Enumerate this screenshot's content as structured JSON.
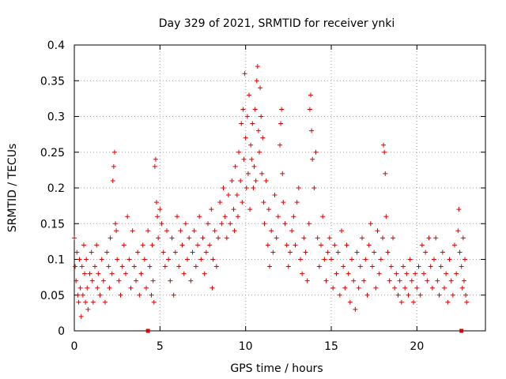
{
  "chart_data": {
    "type": "scatter",
    "title": "Day 329 of 2021, SRMTID for receiver ynki",
    "xlabel": "GPS time / hours",
    "ylabel": "SRMTID / TECUs",
    "xlim": [
      0,
      24
    ],
    "ylim": [
      0,
      0.4
    ],
    "x_ticks": [
      0,
      5,
      10,
      15,
      20
    ],
    "y_ticks": [
      0,
      0.05,
      0.1,
      0.15,
      0.2,
      0.25,
      0.3,
      0.35,
      0.4
    ],
    "x_tick_labels": [
      "0",
      "5",
      "10",
      "15",
      "20"
    ],
    "y_tick_labels": [
      "0",
      "0.05",
      "0.1",
      "0.15",
      "0.2",
      "0.25",
      "0.3",
      "0.35",
      "0.4"
    ],
    "grid": true,
    "marker": "+",
    "color": "#e00000",
    "axis_markers": [
      {
        "x": 4.3,
        "y": 0
      },
      {
        "x": 22.6,
        "y": 0
      }
    ],
    "series": [
      {
        "name": "ynki",
        "points": [
          [
            0.0,
            0.13
          ],
          [
            0.05,
            0.09
          ],
          [
            0.1,
            0.07
          ],
          [
            0.15,
            0.11
          ],
          [
            0.2,
            0.05
          ],
          [
            0.25,
            0.04
          ],
          [
            0.3,
            0.1
          ],
          [
            0.35,
            0.06
          ],
          [
            0.4,
            0.02
          ],
          [
            0.45,
            0.09
          ],
          [
            0.5,
            0.05
          ],
          [
            0.55,
            0.12
          ],
          [
            0.6,
            0.08
          ],
          [
            0.65,
            0.04
          ],
          [
            0.7,
            0.1
          ],
          [
            0.75,
            0.06
          ],
          [
            0.8,
            0.03
          ],
          [
            0.9,
            0.08
          ],
          [
            1.0,
            0.11
          ],
          [
            1.05,
            0.07
          ],
          [
            1.1,
            0.04
          ],
          [
            1.2,
            0.09
          ],
          [
            1.3,
            0.12
          ],
          [
            1.35,
            0.06
          ],
          [
            1.4,
            0.08
          ],
          [
            1.5,
            0.05
          ],
          [
            1.6,
            0.1
          ],
          [
            1.7,
            0.07
          ],
          [
            1.8,
            0.04
          ],
          [
            1.9,
            0.11
          ],
          [
            2.0,
            0.09
          ],
          [
            2.05,
            0.06
          ],
          [
            2.1,
            0.13
          ],
          [
            2.2,
            0.08
          ],
          [
            2.25,
            0.21
          ],
          [
            2.3,
            0.23
          ],
          [
            2.35,
            0.25
          ],
          [
            2.4,
            0.15
          ],
          [
            2.45,
            0.14
          ],
          [
            2.5,
            0.1
          ],
          [
            2.6,
            0.07
          ],
          [
            2.7,
            0.05
          ],
          [
            2.8,
            0.09
          ],
          [
            2.9,
            0.12
          ],
          [
            3.0,
            0.08
          ],
          [
            3.1,
            0.16
          ],
          [
            3.2,
            0.1
          ],
          [
            3.3,
            0.06
          ],
          [
            3.4,
            0.14
          ],
          [
            3.5,
            0.09
          ],
          [
            3.6,
            0.07
          ],
          [
            3.7,
            0.11
          ],
          [
            3.8,
            0.05
          ],
          [
            3.9,
            0.08
          ],
          [
            4.0,
            0.12
          ],
          [
            4.1,
            0.1
          ],
          [
            4.2,
            0.06
          ],
          [
            4.3,
            0.14
          ],
          [
            4.4,
            0.09
          ],
          [
            4.5,
            0.05
          ],
          [
            4.55,
            0.12
          ],
          [
            4.6,
            0.07
          ],
          [
            4.65,
            0.04
          ],
          [
            4.7,
            0.23
          ],
          [
            4.75,
            0.24
          ],
          [
            4.8,
            0.18
          ],
          [
            4.85,
            0.16
          ],
          [
            4.9,
            0.13
          ],
          [
            5.0,
            0.17
          ],
          [
            5.1,
            0.15
          ],
          [
            5.2,
            0.11
          ],
          [
            5.3,
            0.09
          ],
          [
            5.4,
            0.14
          ],
          [
            5.5,
            0.1
          ],
          [
            5.6,
            0.07
          ],
          [
            5.7,
            0.13
          ],
          [
            5.8,
            0.05
          ],
          [
            5.9,
            0.11
          ],
          [
            6.0,
            0.16
          ],
          [
            6.1,
            0.09
          ],
          [
            6.2,
            0.14
          ],
          [
            6.3,
            0.12
          ],
          [
            6.4,
            0.08
          ],
          [
            6.5,
            0.15
          ],
          [
            6.6,
            0.1
          ],
          [
            6.7,
            0.13
          ],
          [
            6.8,
            0.07
          ],
          [
            6.9,
            0.11
          ],
          [
            7.0,
            0.14
          ],
          [
            7.1,
            0.09
          ],
          [
            7.2,
            0.12
          ],
          [
            7.3,
            0.16
          ],
          [
            7.4,
            0.1
          ],
          [
            7.5,
            0.13
          ],
          [
            7.6,
            0.08
          ],
          [
            7.7,
            0.11
          ],
          [
            7.8,
            0.15
          ],
          [
            7.9,
            0.12
          ],
          [
            8.0,
            0.17
          ],
          [
            8.05,
            0.06
          ],
          [
            8.1,
            0.1
          ],
          [
            8.2,
            0.14
          ],
          [
            8.3,
            0.09
          ],
          [
            8.4,
            0.13
          ],
          [
            8.5,
            0.18
          ],
          [
            8.6,
            0.15
          ],
          [
            8.7,
            0.2
          ],
          [
            8.8,
            0.16
          ],
          [
            8.9,
            0.13
          ],
          [
            9.0,
            0.19
          ],
          [
            9.1,
            0.15
          ],
          [
            9.2,
            0.21
          ],
          [
            9.3,
            0.17
          ],
          [
            9.35,
            0.14
          ],
          [
            9.4,
            0.23
          ],
          [
            9.5,
            0.19
          ],
          [
            9.55,
            0.16
          ],
          [
            9.6,
            0.25
          ],
          [
            9.7,
            0.21
          ],
          [
            9.75,
            0.29
          ],
          [
            9.8,
            0.18
          ],
          [
            9.85,
            0.31
          ],
          [
            9.9,
            0.24
          ],
          [
            9.95,
            0.36
          ],
          [
            10.0,
            0.27
          ],
          [
            10.05,
            0.2
          ],
          [
            10.1,
            0.3
          ],
          [
            10.15,
            0.22
          ],
          [
            10.2,
            0.33
          ],
          [
            10.25,
            0.17
          ],
          [
            10.3,
            0.26
          ],
          [
            10.35,
            0.24
          ],
          [
            10.4,
            0.29
          ],
          [
            10.45,
            0.2
          ],
          [
            10.5,
            0.23
          ],
          [
            10.55,
            0.31
          ],
          [
            10.6,
            0.21
          ],
          [
            10.65,
            0.35
          ],
          [
            10.7,
            0.37
          ],
          [
            10.75,
            0.28
          ],
          [
            10.8,
            0.25
          ],
          [
            10.85,
            0.34
          ],
          [
            10.9,
            0.3
          ],
          [
            10.95,
            0.22
          ],
          [
            11.0,
            0.27
          ],
          [
            11.05,
            0.18
          ],
          [
            11.1,
            0.15
          ],
          [
            11.2,
            0.21
          ],
          [
            11.3,
            0.12
          ],
          [
            11.35,
            0.17
          ],
          [
            11.4,
            0.09
          ],
          [
            11.5,
            0.14
          ],
          [
            11.6,
            0.11
          ],
          [
            11.7,
            0.19
          ],
          [
            11.8,
            0.13
          ],
          [
            11.9,
            0.16
          ],
          [
            12.0,
            0.26
          ],
          [
            12.05,
            0.29
          ],
          [
            12.1,
            0.31
          ],
          [
            12.15,
            0.22
          ],
          [
            12.2,
            0.18
          ],
          [
            12.3,
            0.15
          ],
          [
            12.4,
            0.12
          ],
          [
            12.5,
            0.09
          ],
          [
            12.6,
            0.11
          ],
          [
            12.7,
            0.14
          ],
          [
            12.8,
            0.16
          ],
          [
            12.9,
            0.12
          ],
          [
            13.0,
            0.18
          ],
          [
            13.1,
            0.2
          ],
          [
            13.2,
            0.1
          ],
          [
            13.3,
            0.08
          ],
          [
            13.4,
            0.13
          ],
          [
            13.5,
            0.11
          ],
          [
            13.6,
            0.07
          ],
          [
            13.7,
            0.15
          ],
          [
            13.75,
            0.31
          ],
          [
            13.8,
            0.33
          ],
          [
            13.85,
            0.28
          ],
          [
            13.9,
            0.24
          ],
          [
            14.0,
            0.2
          ],
          [
            14.1,
            0.25
          ],
          [
            14.2,
            0.13
          ],
          [
            14.3,
            0.09
          ],
          [
            14.4,
            0.12
          ],
          [
            14.5,
            0.16
          ],
          [
            14.6,
            0.1
          ],
          [
            14.7,
            0.07
          ],
          [
            14.8,
            0.11
          ],
          [
            14.9,
            0.13
          ],
          [
            15.0,
            0.1
          ],
          [
            15.1,
            0.06
          ],
          [
            15.2,
            0.12
          ],
          [
            15.3,
            0.08
          ],
          [
            15.4,
            0.11
          ],
          [
            15.5,
            0.05
          ],
          [
            15.6,
            0.14
          ],
          [
            15.7,
            0.09
          ],
          [
            15.8,
            0.06
          ],
          [
            15.9,
            0.12
          ],
          [
            16.0,
            0.08
          ],
          [
            16.1,
            0.04
          ],
          [
            16.2,
            0.1
          ],
          [
            16.3,
            0.07
          ],
          [
            16.4,
            0.03
          ],
          [
            16.5,
            0.11
          ],
          [
            16.6,
            0.06
          ],
          [
            16.7,
            0.09
          ],
          [
            16.8,
            0.13
          ],
          [
            16.9,
            0.07
          ],
          [
            17.0,
            0.1
          ],
          [
            17.1,
            0.05
          ],
          [
            17.2,
            0.12
          ],
          [
            17.3,
            0.15
          ],
          [
            17.4,
            0.09
          ],
          [
            17.5,
            0.11
          ],
          [
            17.6,
            0.06
          ],
          [
            17.7,
            0.14
          ],
          [
            17.8,
            0.08
          ],
          [
            17.9,
            0.1
          ],
          [
            18.0,
            0.13
          ],
          [
            18.05,
            0.26
          ],
          [
            18.1,
            0.25
          ],
          [
            18.15,
            0.22
          ],
          [
            18.2,
            0.16
          ],
          [
            18.3,
            0.11
          ],
          [
            18.4,
            0.07
          ],
          [
            18.5,
            0.09
          ],
          [
            18.6,
            0.13
          ],
          [
            18.7,
            0.06
          ],
          [
            18.8,
            0.08
          ],
          [
            18.9,
            0.05
          ],
          [
            19.0,
            0.07
          ],
          [
            19.1,
            0.04
          ],
          [
            19.2,
            0.09
          ],
          [
            19.3,
            0.06
          ],
          [
            19.4,
            0.08
          ],
          [
            19.5,
            0.05
          ],
          [
            19.6,
            0.1
          ],
          [
            19.7,
            0.07
          ],
          [
            19.8,
            0.04
          ],
          [
            19.9,
            0.08
          ],
          [
            20.0,
            0.06
          ],
          [
            20.1,
            0.09
          ],
          [
            20.2,
            0.05
          ],
          [
            20.3,
            0.12
          ],
          [
            20.4,
            0.08
          ],
          [
            20.5,
            0.11
          ],
          [
            20.6,
            0.07
          ],
          [
            20.7,
            0.13
          ],
          [
            20.8,
            0.09
          ],
          [
            20.9,
            0.06
          ],
          [
            21.0,
            0.1
          ],
          [
            21.1,
            0.13
          ],
          [
            21.2,
            0.07
          ],
          [
            21.3,
            0.05
          ],
          [
            21.4,
            0.09
          ],
          [
            21.5,
            0.11
          ],
          [
            21.6,
            0.06
          ],
          [
            21.7,
            0.08
          ],
          [
            21.8,
            0.04
          ],
          [
            21.9,
            0.1
          ],
          [
            22.0,
            0.07
          ],
          [
            22.1,
            0.05
          ],
          [
            22.2,
            0.12
          ],
          [
            22.3,
            0.08
          ],
          [
            22.4,
            0.14
          ],
          [
            22.45,
            0.17
          ],
          [
            22.5,
            0.11
          ],
          [
            22.6,
            0.09
          ],
          [
            22.65,
            0.06
          ],
          [
            22.7,
            0.13
          ],
          [
            22.75,
            0.07
          ],
          [
            22.8,
            0.1
          ],
          [
            22.85,
            0.05
          ],
          [
            22.9,
            0.04
          ]
        ]
      }
    ]
  }
}
